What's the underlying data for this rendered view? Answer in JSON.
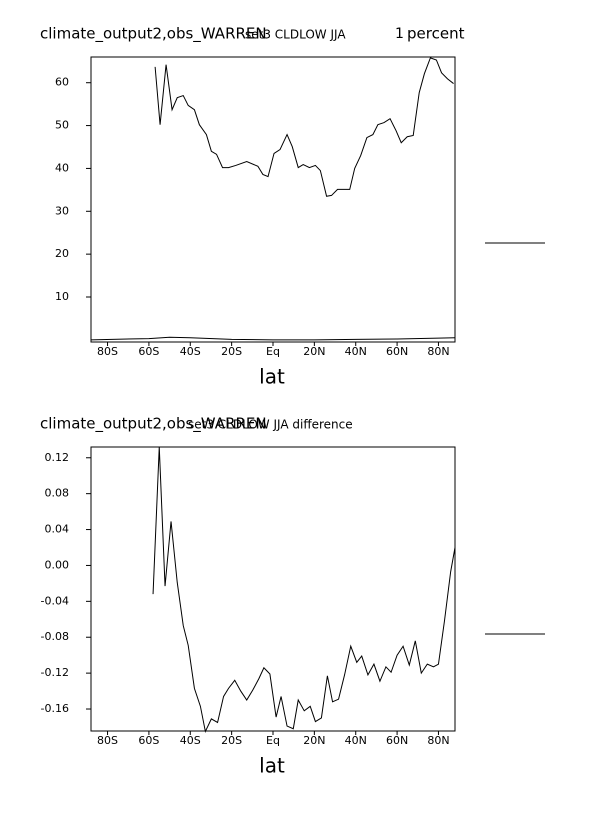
{
  "chart_data": [
    {
      "type": "line",
      "title": "climate_output2,obs_WARREN",
      "subtitle": "set3 CLDLOW JJA",
      "annotation": "1",
      "units": "percent",
      "xlabel": "lat",
      "xlim": [
        -88,
        88
      ],
      "ylim": [
        -0.5,
        66
      ],
      "xticks": [
        {
          "value": -80,
          "label": "80S"
        },
        {
          "value": -60,
          "label": "60S"
        },
        {
          "value": -40,
          "label": "40S"
        },
        {
          "value": -20,
          "label": "20S"
        },
        {
          "value": 0,
          "label": "Eq"
        },
        {
          "value": 20,
          "label": "20N"
        },
        {
          "value": 40,
          "label": "40N"
        },
        {
          "value": 60,
          "label": "60N"
        },
        {
          "value": 80,
          "label": "80N"
        }
      ],
      "yticks": [
        10,
        20,
        30,
        40,
        50,
        60
      ],
      "series": [
        {
          "color": "#000000",
          "x": [
            -57,
            -54.6,
            -51.7,
            -48.8,
            -46.3,
            -43.4,
            -41,
            -38,
            -35.6,
            -32.2,
            -29.8,
            -27.3,
            -24.4,
            -21.5,
            -18,
            -12.7,
            -7.3,
            -4.9,
            -2.4,
            0.5,
            3.4,
            6.8,
            9.3,
            12.2,
            14.6,
            17.6,
            20.5,
            22.9,
            25.9,
            28.3,
            31.2,
            37.1,
            39.5,
            42.4,
            45.4,
            48.3,
            50.7,
            53.7,
            56.6,
            59.5,
            62,
            64.9,
            67.8,
            70.7,
            73.2,
            76.1,
            79,
            81.5,
            84.4,
            87.3
          ],
          "values": [
            63.7,
            50.2,
            64.2,
            53.7,
            56.5,
            57,
            54.7,
            53.7,
            50.2,
            47.9,
            44,
            43.3,
            40.2,
            40.2,
            40.7,
            41.6,
            40.5,
            38.6,
            38.1,
            43.5,
            44.4,
            47.9,
            45.1,
            40.2,
            40.9,
            40.2,
            40.7,
            39.5,
            33.5,
            33.7,
            35.1,
            35.1,
            40,
            43,
            47.2,
            47.9,
            50.2,
            50.7,
            51.6,
            48.8,
            46,
            47.4,
            47.7,
            57.7,
            62.1,
            65.8,
            65.3,
            62.3,
            60.9,
            59.8
          ]
        },
        {
          "color": "#000000",
          "x": [
            -88,
            -60,
            -50,
            -40,
            -20,
            0,
            20,
            40,
            60,
            80,
            88
          ],
          "values": [
            0,
            0.3,
            0.6,
            0.5,
            0.1,
            0,
            0,
            0.1,
            0.2,
            0.4,
            0.5
          ]
        }
      ]
    },
    {
      "type": "line",
      "title": "climate_output2,obs_WARREN",
      "subtitle": "set3 CLDLOW JJA difference",
      "xlabel": "lat",
      "xlim": [
        -88,
        88
      ],
      "ylim": [
        -0.1845,
        0.132
      ],
      "xticks": [
        {
          "value": -80,
          "label": "80S"
        },
        {
          "value": -60,
          "label": "60S"
        },
        {
          "value": -40,
          "label": "40S"
        },
        {
          "value": -20,
          "label": "20S"
        },
        {
          "value": 0,
          "label": "Eq"
        },
        {
          "value": 20,
          "label": "20N"
        },
        {
          "value": 40,
          "label": "40N"
        },
        {
          "value": 60,
          "label": "60N"
        },
        {
          "value": 80,
          "label": "80N"
        }
      ],
      "yticks": [
        {
          "value": 0.12,
          "label": "0.12"
        },
        {
          "value": 0.08,
          "label": "0.08"
        },
        {
          "value": 0.04,
          "label": "0.04"
        },
        {
          "value": 0,
          "label": "0.00"
        },
        {
          "value": -0.04,
          "label": "-0.04"
        },
        {
          "value": -0.08,
          "label": "-0.08"
        },
        {
          "value": -0.12,
          "label": "-0.12"
        },
        {
          "value": -0.16,
          "label": "-0.16"
        }
      ],
      "series": [
        {
          "color": "#000000",
          "x": [
            -58,
            -55,
            -52.2,
            -49.3,
            -46.3,
            -43.4,
            -41,
            -38,
            -35.1,
            -32.7,
            -29.8,
            -26.8,
            -23.9,
            -21.5,
            -18.5,
            -15.6,
            -12.7,
            -9.8,
            -6.8,
            -4.4,
            -1.5,
            1.5,
            3.9,
            6.8,
            9.8,
            12.2,
            15.1,
            18,
            20.5,
            23.4,
            26.3,
            28.8,
            31.7,
            34.6,
            37.6,
            40.5,
            42.9,
            45.9,
            48.8,
            51.7,
            54.6,
            57.1,
            60,
            62.9,
            65.9,
            68.8,
            71.7,
            74.6,
            77.6,
            80,
            82.9,
            85.9,
            88
          ],
          "values": [
            -0.032,
            0.132,
            -0.023,
            0.049,
            -0.019,
            -0.067,
            -0.089,
            -0.137,
            -0.157,
            -0.185,
            -0.171,
            -0.175,
            -0.146,
            -0.137,
            -0.128,
            -0.14,
            -0.15,
            -0.139,
            -0.126,
            -0.114,
            -0.121,
            -0.169,
            -0.146,
            -0.179,
            -0.182,
            -0.15,
            -0.162,
            -0.157,
            -0.174,
            -0.17,
            -0.123,
            -0.152,
            -0.149,
            -0.122,
            -0.09,
            -0.108,
            -0.101,
            -0.122,
            -0.11,
            -0.129,
            -0.113,
            -0.119,
            -0.1,
            -0.09,
            -0.111,
            -0.084,
            -0.12,
            -0.11,
            -0.113,
            -0.11,
            -0.062,
            -0.007,
            0.02
          ]
        }
      ]
    }
  ]
}
